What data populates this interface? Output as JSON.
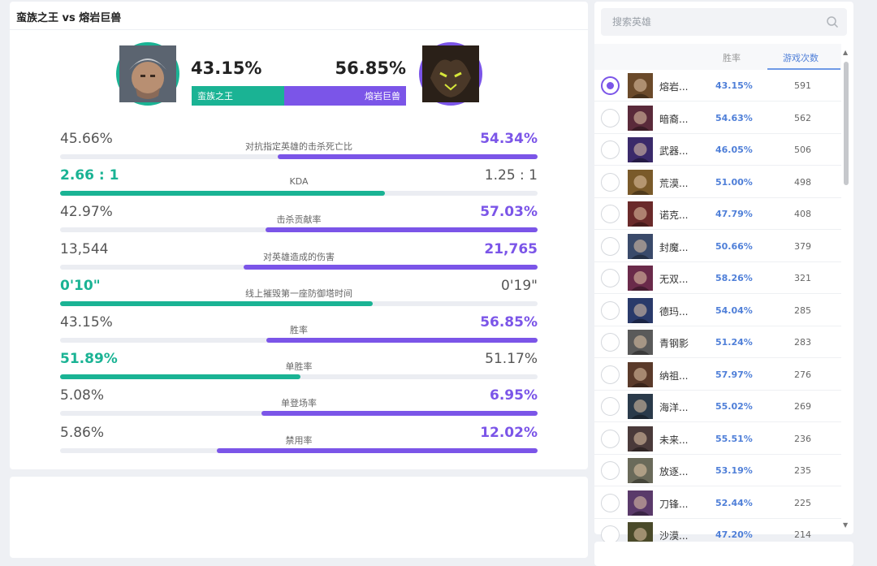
{
  "matchup": {
    "title": "蛮族之王 vs 熔岩巨兽",
    "left_hero": {
      "name": "蛮族之王",
      "win_rate": "43.15%",
      "color": "#1ab394",
      "avatar": "tryndamere-portrait"
    },
    "right_hero": {
      "name": "熔岩巨兽",
      "win_rate": "56.85%",
      "color": "#7b55e8",
      "avatar": "malphite-portrait"
    },
    "bar_left_fraction": 0.4315
  },
  "stats": [
    {
      "label": "对抗指定英雄的击杀死亡比",
      "left": "45.66%",
      "right": "54.34%",
      "winner": "right",
      "fill": 0.5434
    },
    {
      "label": "KDA",
      "left": "2.66 : 1",
      "right": "1.25 : 1",
      "winner": "left",
      "fill": 0.68
    },
    {
      "label": "击杀贡献率",
      "left": "42.97%",
      "right": "57.03%",
      "winner": "right",
      "fill": 0.5703
    },
    {
      "label": "对英雄造成的伤害",
      "left": "13,544",
      "right": "21,765",
      "winner": "right",
      "fill": 0.6164
    },
    {
      "label": "线上摧毁第一座防御塔时间",
      "left": "0'10\"",
      "right": "0'19\"",
      "winner": "left",
      "fill": 0.655
    },
    {
      "label": "胜率",
      "left": "43.15%",
      "right": "56.85%",
      "winner": "right",
      "fill": 0.5685
    },
    {
      "label": "单胜率",
      "left": "51.89%",
      "right": "51.17%",
      "winner": "left",
      "fill": 0.5035
    },
    {
      "label": "单登场率",
      "left": "5.08%",
      "right": "6.95%",
      "winner": "right",
      "fill": 0.5777
    },
    {
      "label": "禁用率",
      "left": "5.86%",
      "right": "12.02%",
      "winner": "right",
      "fill": 0.6723
    }
  ],
  "search": {
    "placeholder": "搜索英雄"
  },
  "list_header": {
    "win_rate": "胜率",
    "games": "游戏次数"
  },
  "heroes": [
    {
      "name": "熔岩...",
      "rate": "43.15%",
      "games": "591",
      "selected": true,
      "icon": "malphite-icon",
      "tone": "#6b4a2a"
    },
    {
      "name": "暗裔...",
      "rate": "54.63%",
      "games": "562",
      "selected": false,
      "icon": "aatrox-icon",
      "tone": "#5a2a3a"
    },
    {
      "name": "武器...",
      "rate": "46.05%",
      "games": "506",
      "selected": false,
      "icon": "jax-icon",
      "tone": "#3a2a6a"
    },
    {
      "name": "荒漠...",
      "rate": "51.00%",
      "games": "498",
      "selected": false,
      "icon": "renekton-icon",
      "tone": "#7a5a2a"
    },
    {
      "name": "诺克...",
      "rate": "47.79%",
      "games": "408",
      "selected": false,
      "icon": "darius-icon",
      "tone": "#6a2a2a"
    },
    {
      "name": "封魔...",
      "rate": "50.66%",
      "games": "379",
      "selected": false,
      "icon": "mordekaiser-icon",
      "tone": "#3a4a6a"
    },
    {
      "name": "无双...",
      "rate": "58.26%",
      "games": "321",
      "selected": false,
      "icon": "fiora-icon",
      "tone": "#6a2a4a"
    },
    {
      "name": "德玛...",
      "rate": "54.04%",
      "games": "285",
      "selected": false,
      "icon": "garen-icon",
      "tone": "#2a3a6a"
    },
    {
      "name": "青钢影",
      "rate": "51.24%",
      "games": "283",
      "selected": false,
      "icon": "camille-icon",
      "tone": "#5a5a5a"
    },
    {
      "name": "纳祖...",
      "rate": "57.97%",
      "games": "276",
      "selected": false,
      "icon": "nasus-icon",
      "tone": "#5a3a2a"
    },
    {
      "name": "海洋...",
      "rate": "55.02%",
      "games": "269",
      "selected": false,
      "icon": "gangplank-icon",
      "tone": "#2a3a4a"
    },
    {
      "name": "未来...",
      "rate": "55.51%",
      "games": "236",
      "selected": false,
      "icon": "jayce-icon",
      "tone": "#4a3a3a"
    },
    {
      "name": "放逐...",
      "rate": "53.19%",
      "games": "235",
      "selected": false,
      "icon": "riven-icon",
      "tone": "#6a6a5a"
    },
    {
      "name": "刀锋...",
      "rate": "52.44%",
      "games": "225",
      "selected": false,
      "icon": "irelia-icon",
      "tone": "#5a3a6a"
    },
    {
      "name": "沙漠...",
      "rate": "47.20%",
      "games": "214",
      "selected": false,
      "icon": "azir-icon",
      "tone": "#4a4a2a"
    }
  ]
}
